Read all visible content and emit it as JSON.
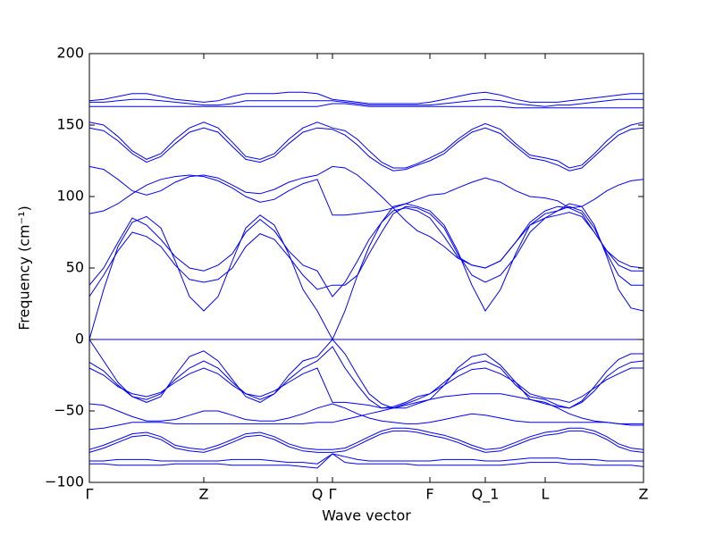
{
  "chart_data": {
    "type": "line",
    "xlabel": "Wave vector",
    "ylabel": "Frequency (cm⁻¹)",
    "color": "#0000ff",
    "xlim": [
      0,
      6.2
    ],
    "ylim": [
      -100,
      200
    ],
    "xticks": [
      {
        "value": 0,
        "label": "Γ"
      },
      {
        "value": 1.28,
        "label": "Z"
      },
      {
        "value": 2.55,
        "label": "Q"
      },
      {
        "value": 2.72,
        "label": "Γ"
      },
      {
        "value": 3.81,
        "label": "F"
      },
      {
        "value": 4.43,
        "label": "Q_1"
      },
      {
        "value": 5.1,
        "label": "L"
      },
      {
        "value": 6.2,
        "label": "Z"
      }
    ],
    "yticks": [
      {
        "value": -100,
        "label": "−100"
      },
      {
        "value": -50,
        "label": "−50"
      },
      0,
      50,
      100,
      150,
      200
    ],
    "x": [
      0,
      0.16,
      0.32,
      0.48,
      0.64,
      0.8,
      0.96,
      1.12,
      1.28,
      1.44,
      1.6,
      1.75,
      1.91,
      2.07,
      2.23,
      2.39,
      2.55,
      2.72,
      2.86,
      3.0,
      3.13,
      3.27,
      3.4,
      3.54,
      3.67,
      3.81,
      3.97,
      4.12,
      4.28,
      4.43,
      4.6,
      4.77,
      4.93,
      5.1,
      5.24,
      5.37,
      5.51,
      5.65,
      5.79,
      5.92,
      6.06,
      6.2
    ],
    "series": [
      {
        "values": [
          167,
          168,
          170,
          172,
          172,
          170,
          168,
          167,
          166,
          167,
          170,
          172,
          172,
          172,
          173,
          173,
          172,
          168,
          167,
          166,
          165,
          165,
          165,
          165,
          165,
          166,
          168,
          170,
          172,
          173,
          171,
          168,
          166,
          166,
          166,
          167,
          168,
          169,
          170,
          171,
          172,
          172
        ]
      },
      {
        "values": [
          166,
          166,
          167,
          168,
          168,
          167,
          166,
          165,
          164,
          164,
          165,
          167,
          167,
          167,
          167,
          167,
          167,
          167,
          166,
          165,
          164,
          164,
          164,
          164,
          164,
          164,
          165,
          166,
          167,
          168,
          167,
          165,
          164,
          163,
          164,
          164,
          165,
          166,
          167,
          168,
          168,
          168
        ]
      },
      {
        "values": [
          163,
          163,
          163,
          163,
          163,
          163,
          163,
          163,
          163,
          163,
          163,
          163,
          163,
          163,
          163,
          163,
          163,
          165,
          165,
          164,
          163,
          163,
          163,
          163,
          163,
          163,
          163,
          163,
          163,
          163,
          163,
          162,
          162,
          162,
          162,
          162,
          162,
          162,
          162,
          162,
          162,
          162
        ]
      },
      {
        "values": [
          152,
          150,
          142,
          132,
          126,
          130,
          140,
          148,
          152,
          148,
          138,
          128,
          126,
          130,
          140,
          148,
          152,
          148,
          146,
          140,
          132,
          124,
          120,
          120,
          123,
          127,
          132,
          140,
          147,
          151,
          147,
          137,
          129,
          127,
          125,
          120,
          122,
          130,
          139,
          146,
          150,
          152
        ]
      },
      {
        "values": [
          148,
          146,
          139,
          130,
          124,
          128,
          137,
          145,
          148,
          145,
          135,
          126,
          124,
          128,
          137,
          145,
          148,
          147,
          143,
          136,
          128,
          122,
          118,
          119,
          122,
          125,
          130,
          138,
          145,
          148,
          144,
          135,
          127,
          125,
          122,
          118,
          120,
          128,
          136,
          143,
          147,
          148
        ]
      },
      {
        "values": [
          121,
          119,
          112,
          104,
          101,
          104,
          110,
          114,
          115,
          113,
          108,
          103,
          102,
          105,
          110,
          113,
          115,
          121,
          120,
          115,
          108,
          100,
          92,
          83,
          76,
          72,
          65,
          57,
          52,
          50,
          55,
          68,
          80,
          85,
          87,
          89,
          86,
          75,
          62,
          55,
          51,
          50
        ]
      },
      {
        "values": [
          88,
          90,
          95,
          102,
          108,
          112,
          114,
          115,
          114,
          111,
          106,
          100,
          96,
          98,
          104,
          109,
          112,
          87,
          87,
          88,
          89,
          90,
          92,
          95,
          98,
          101,
          102,
          106,
          110,
          113,
          110,
          104,
          100,
          99,
          97,
          92,
          93,
          98,
          104,
          108,
          111,
          112
        ]
      },
      {
        "values": [
          0,
          35,
          65,
          82,
          86,
          78,
          55,
          30,
          20,
          30,
          55,
          78,
          87,
          80,
          60,
          35,
          20,
          0,
          20,
          45,
          65,
          82,
          93,
          95,
          93,
          90,
          80,
          62,
          38,
          20,
          35,
          60,
          80,
          88,
          90,
          95,
          93,
          80,
          58,
          35,
          22,
          20
        ]
      },
      {
        "values": [
          30,
          45,
          62,
          75,
          72,
          65,
          52,
          42,
          40,
          42,
          50,
          65,
          74,
          70,
          58,
          45,
          35,
          38,
          38,
          45,
          60,
          75,
          88,
          93,
          92,
          88,
          78,
          60,
          45,
          40,
          45,
          58,
          75,
          85,
          90,
          93,
          90,
          78,
          60,
          45,
          38,
          38
        ]
      },
      {
        "values": [
          38,
          50,
          68,
          85,
          80,
          70,
          58,
          50,
          48,
          52,
          60,
          75,
          84,
          76,
          62,
          52,
          48,
          30,
          40,
          55,
          70,
          82,
          90,
          92,
          90,
          85,
          72,
          58,
          52,
          50,
          55,
          68,
          82,
          90,
          93,
          92,
          88,
          75,
          62,
          52,
          48,
          48
        ]
      },
      {
        "values": [
          0,
          0,
          0,
          0,
          0,
          0,
          0,
          0,
          0,
          0,
          0,
          0,
          0,
          0,
          0,
          0,
          0,
          0,
          0,
          0,
          0,
          0,
          0,
          0,
          0,
          0,
          0,
          0,
          0,
          0,
          0,
          0,
          0,
          0,
          0,
          0,
          0,
          0,
          0,
          0,
          0,
          0
        ]
      },
      {
        "values": [
          0,
          -15,
          -30,
          -40,
          -44,
          -40,
          -25,
          -12,
          -8,
          -15,
          -28,
          -40,
          -44,
          -38,
          -25,
          -15,
          -12,
          0,
          -10,
          -25,
          -38,
          -45,
          -48,
          -48,
          -45,
          -42,
          -32,
          -20,
          -12,
          -10,
          -18,
          -30,
          -42,
          -45,
          -47,
          -48,
          -43,
          -33,
          -22,
          -14,
          -10,
          -10
        ]
      },
      {
        "values": [
          -16,
          -22,
          -32,
          -40,
          -42,
          -38,
          -28,
          -20,
          -15,
          -20,
          -30,
          -38,
          -42,
          -38,
          -28,
          -20,
          -15,
          -5,
          -20,
          -32,
          -42,
          -48,
          -48,
          -45,
          -42,
          -38,
          -30,
          -22,
          -17,
          -15,
          -20,
          -32,
          -40,
          -42,
          -46,
          -48,
          -44,
          -36,
          -26,
          -20,
          -16,
          -15
        ]
      },
      {
        "values": [
          -20,
          -25,
          -33,
          -38,
          -40,
          -37,
          -30,
          -24,
          -20,
          -24,
          -32,
          -38,
          -40,
          -36,
          -30,
          -24,
          -20,
          -44,
          -44,
          -45,
          -46,
          -48,
          -47,
          -44,
          -40,
          -38,
          -32,
          -26,
          -21,
          -20,
          -24,
          -30,
          -38,
          -41,
          -42,
          -44,
          -40,
          -34,
          -28,
          -24,
          -20,
          -20
        ]
      },
      {
        "values": [
          -45,
          -46,
          -50,
          -54,
          -57,
          -57,
          -56,
          -53,
          -50,
          -50,
          -53,
          -56,
          -57,
          -57,
          -55,
          -52,
          -48,
          -45,
          -48,
          -52,
          -55,
          -57,
          -58,
          -59,
          -59,
          -58,
          -56,
          -54,
          -52,
          -53,
          -55,
          -57,
          -58,
          -58,
          -58,
          -58,
          -58,
          -58,
          -58,
          -59,
          -59,
          -59
        ]
      },
      {
        "values": [
          -63,
          -62,
          -60,
          -58,
          -58,
          -58,
          -59,
          -59,
          -59,
          -59,
          -59,
          -59,
          -59,
          -59,
          -59,
          -59,
          -58,
          -58,
          -56,
          -54,
          -52,
          -50,
          -48,
          -46,
          -44,
          -42,
          -40,
          -39,
          -38,
          -38,
          -38,
          -40,
          -42,
          -44,
          -48,
          -52,
          -55,
          -57,
          -58,
          -59,
          -60,
          -60
        ]
      },
      {
        "values": [
          -77,
          -74,
          -70,
          -66,
          -65,
          -68,
          -74,
          -76,
          -77,
          -74,
          -70,
          -66,
          -65,
          -68,
          -73,
          -76,
          -77,
          -77,
          -76,
          -72,
          -68,
          -64,
          -62,
          -62,
          -63,
          -65,
          -67,
          -70,
          -74,
          -77,
          -76,
          -72,
          -68,
          -65,
          -64,
          -62,
          -62,
          -64,
          -68,
          -73,
          -76,
          -77
        ]
      },
      {
        "values": [
          -79,
          -76,
          -72,
          -68,
          -67,
          -70,
          -76,
          -78,
          -79,
          -76,
          -72,
          -68,
          -67,
          -70,
          -75,
          -78,
          -79,
          -79,
          -78,
          -74,
          -70,
          -66,
          -64,
          -64,
          -65,
          -67,
          -69,
          -72,
          -76,
          -79,
          -78,
          -74,
          -70,
          -67,
          -66,
          -64,
          -64,
          -66,
          -70,
          -75,
          -78,
          -79
        ]
      },
      {
        "values": [
          -85,
          -85,
          -84,
          -84,
          -84,
          -85,
          -85,
          -85,
          -85,
          -85,
          -84,
          -84,
          -84,
          -85,
          -86,
          -86,
          -87,
          -80,
          -82,
          -84,
          -85,
          -85,
          -85,
          -85,
          -85,
          -85,
          -84,
          -84,
          -84,
          -85,
          -85,
          -84,
          -83,
          -83,
          -83,
          -84,
          -84,
          -84,
          -85,
          -85,
          -85,
          -85
        ]
      },
      {
        "values": [
          -87,
          -87,
          -88,
          -88,
          -88,
          -88,
          -87,
          -87,
          -87,
          -87,
          -88,
          -88,
          -88,
          -88,
          -88,
          -89,
          -90,
          -80,
          -86,
          -87,
          -87,
          -87,
          -87,
          -87,
          -88,
          -88,
          -88,
          -88,
          -88,
          -88,
          -88,
          -87,
          -86,
          -86,
          -86,
          -87,
          -87,
          -88,
          -88,
          -88,
          -88,
          -89
        ]
      }
    ]
  }
}
